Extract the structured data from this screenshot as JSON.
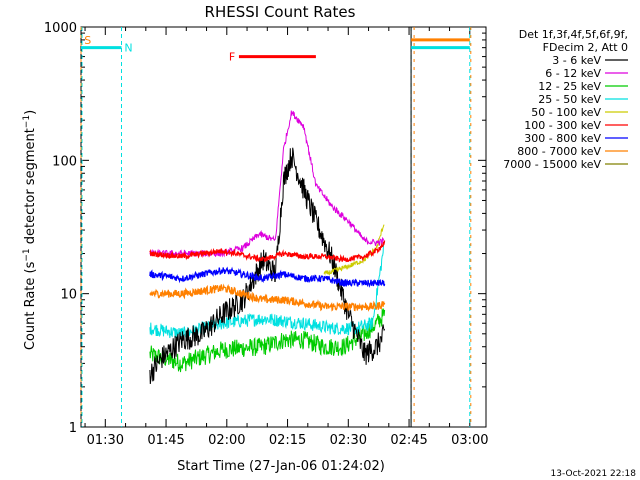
{
  "chart_data": {
    "type": "line",
    "title": "RHESSI Count Rates",
    "xlabel": "Start Time (27-Jan-06 01:24:02)",
    "ylabel": "Count Rate (s⁻¹ detector segment⁻¹)",
    "yscale": "log",
    "ylim": [
      1,
      1000
    ],
    "xlim_minutes": [
      0,
      100
    ],
    "yticks": [
      "1",
      "10",
      "100",
      "1000"
    ],
    "xticks": [
      {
        "label": "01:30",
        "minute": 6
      },
      {
        "label": "01:45",
        "minute": 21
      },
      {
        "label": "02:00",
        "minute": 36
      },
      {
        "label": "02:15",
        "minute": 51
      },
      {
        "label": "02:30",
        "minute": 66
      },
      {
        "label": "02:45",
        "minute": 81
      },
      {
        "label": "03:00",
        "minute": 96
      }
    ],
    "footer": "13-Oct-2021 22:18",
    "legend": {
      "header_line1": "Det 1f,3f,4f,5f,6f,9f,",
      "header_line2": "FDecim 2, Att 0",
      "placement": "right"
    },
    "colors": {
      "3-6": "#000000",
      "6-12": "#dd00dd",
      "12-25": "#00cc00",
      "25-50": "#00e0e0",
      "50-100": "#cccc00",
      "100-300": "#ff0000",
      "300-800": "#0000ff",
      "800-7000": "#ff8000",
      "7000-15000": "#808000"
    },
    "series": [
      {
        "name": "3 - 6 keV",
        "color": "#000000",
        "x": [
          17,
          20,
          25,
          30,
          35,
          40,
          45,
          48,
          50,
          52,
          55,
          58,
          62,
          66,
          70,
          73,
          75
        ],
        "y": [
          2.5,
          3.3,
          4.5,
          5,
          7,
          9,
          18,
          14,
          70,
          110,
          60,
          35,
          18,
          7,
          3.5,
          4,
          5
        ]
      },
      {
        "name": "6 - 12 keV",
        "color": "#dd00dd",
        "x": [
          17,
          25,
          35,
          40,
          44,
          48,
          50,
          52,
          55,
          58,
          62,
          66,
          70,
          73,
          75
        ],
        "y": [
          20,
          20,
          20,
          22,
          28,
          25,
          120,
          230,
          180,
          65,
          45,
          35,
          25,
          24,
          25
        ]
      },
      {
        "name": "12 - 25 keV",
        "color": "#00cc00",
        "x": [
          17,
          25,
          35,
          45,
          50,
          55,
          60,
          65,
          70,
          73,
          75
        ],
        "y": [
          3.5,
          3,
          3.8,
          4,
          4.5,
          4.5,
          4,
          4,
          5,
          6,
          7
        ]
      },
      {
        "name": "25 - 50 keV",
        "color": "#00e0e0",
        "x": [
          17,
          25,
          35,
          45,
          55,
          62,
          68,
          72,
          75
        ],
        "y": [
          5.5,
          5,
          6,
          6.5,
          6,
          5.5,
          5.5,
          6,
          25
        ]
      },
      {
        "name": "50 - 100 keV",
        "color": "#cccc00",
        "x": [
          60,
          66,
          70,
          73,
          75
        ],
        "y": [
          14,
          16,
          18,
          22,
          35
        ]
      },
      {
        "name": "100 - 300 keV",
        "color": "#ff0000",
        "x": [
          17,
          25,
          35,
          45,
          50,
          55,
          60,
          65,
          70,
          73,
          75
        ],
        "y": [
          20,
          19,
          21,
          18,
          20,
          19,
          19,
          18,
          19,
          21,
          24
        ]
      },
      {
        "name": "300 - 800 keV",
        "color": "#0000ff",
        "x": [
          17,
          25,
          35,
          45,
          50,
          55,
          60,
          65,
          70,
          73,
          75
        ],
        "y": [
          14,
          13,
          15,
          13,
          14,
          13,
          13,
          12,
          12,
          12,
          12
        ]
      },
      {
        "name": "800 - 7000 keV",
        "color": "#ff8000",
        "x": [
          17,
          25,
          35,
          45,
          50,
          55,
          60,
          65,
          70,
          73,
          75
        ],
        "y": [
          10,
          10,
          11,
          9,
          9,
          8.5,
          8,
          8,
          8,
          8,
          8.5
        ]
      },
      {
        "name": "7000 - 15000 keV",
        "color": "#808000",
        "x": [],
        "y": []
      }
    ],
    "markers": [
      {
        "letter": "S",
        "color": "#ff8000"
      },
      {
        "letter": "N",
        "color": "#00e0e0"
      },
      {
        "letter": "F",
        "color": "#ff0000"
      }
    ],
    "flare_bar": {
      "x_start": 39,
      "x_end": 58,
      "y": 600
    },
    "night_line_top": {
      "color": "#00e0e0",
      "segments": [
        [
          0,
          10
        ],
        [
          81.5,
          96
        ]
      ],
      "y": 700
    },
    "saa_line_top": {
      "color": "#ff8000",
      "segments": [
        [
          81.5,
          96
        ]
      ],
      "y": 800
    }
  }
}
